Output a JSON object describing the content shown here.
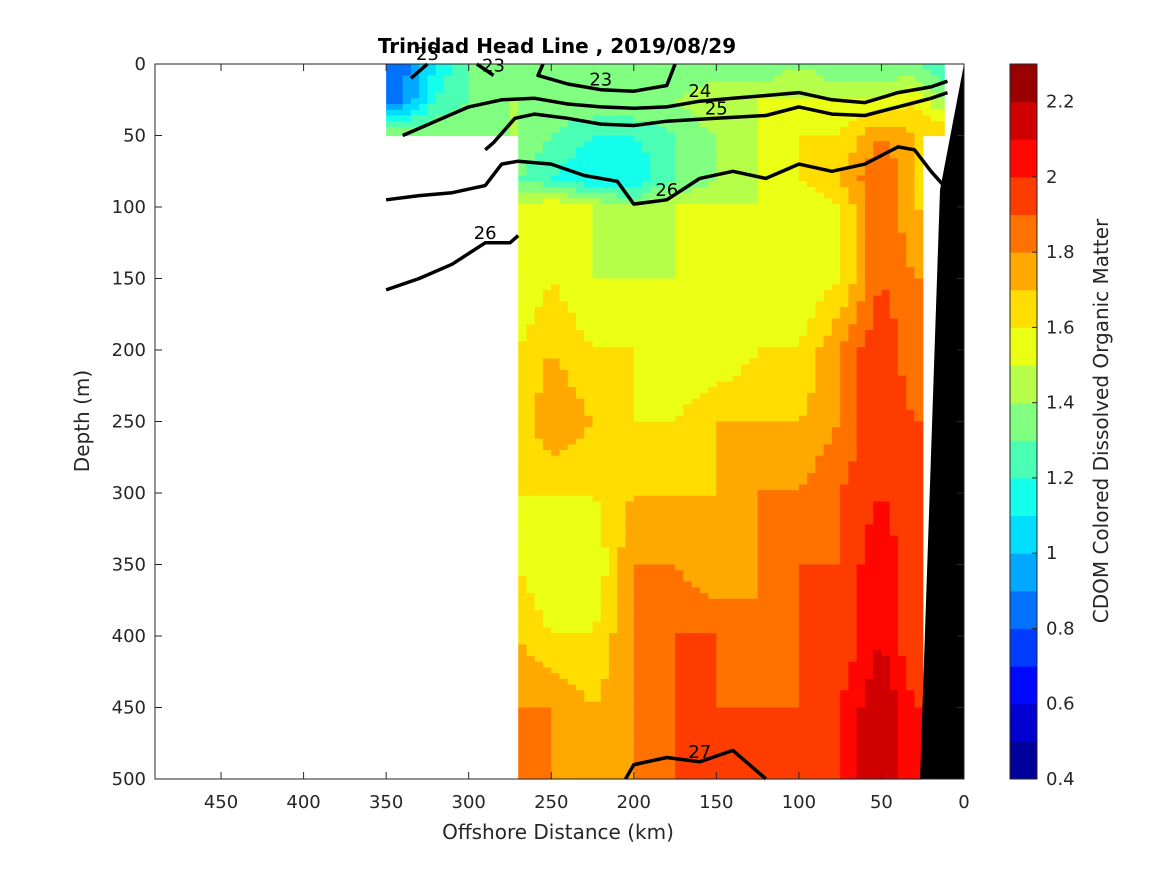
{
  "chart_data": {
    "type": "heatmap",
    "title": "Trinidad Head Line , 2019/08/29",
    "xlabel": "Offshore Distance (km)",
    "ylabel": "Depth (m)",
    "colorbar_label": "CDOM Colored Dissolved Organic Matter",
    "xlim": [
      490,
      0
    ],
    "ylim": [
      0,
      500
    ],
    "x_reversed": true,
    "y_reversed": true,
    "xticks": [
      450,
      400,
      350,
      300,
      250,
      200,
      150,
      100,
      50,
      0
    ],
    "yticks": [
      0,
      50,
      100,
      150,
      200,
      250,
      300,
      350,
      400,
      450,
      500
    ],
    "colorbar_range": [
      0.4,
      2.3
    ],
    "colorbar_ticks": [
      "0.4",
      "0.6",
      "0.8",
      "1",
      "1.2",
      "1.4",
      "1.6",
      "1.8",
      "2",
      "2.2"
    ],
    "colorbar_steps": 19,
    "field_regions": [
      {
        "x": [
          350,
          12
        ],
        "depth": [
          0,
          50
        ]
      },
      {
        "x": [
          270,
          25
        ],
        "depth": [
          50,
          500
        ]
      }
    ],
    "field_samples": [
      {
        "depth": 0,
        "values": [
          {
            "x": 345,
            "v": 0.8
          },
          {
            "x": 320,
            "v": 1.1
          },
          {
            "x": 300,
            "v": 1.3
          },
          {
            "x": 275,
            "v": 1.3
          },
          {
            "x": 250,
            "v": 1.3
          },
          {
            "x": 225,
            "v": 1.3
          },
          {
            "x": 200,
            "v": 1.4
          },
          {
            "x": 175,
            "v": 1.3
          },
          {
            "x": 150,
            "v": 1.3
          },
          {
            "x": 125,
            "v": 1.3
          },
          {
            "x": 100,
            "v": 1.4
          },
          {
            "x": 75,
            "v": 1.3
          },
          {
            "x": 50,
            "v": 1.3
          },
          {
            "x": 30,
            "v": 1.3
          },
          {
            "x": 15,
            "v": 1.2
          }
        ]
      },
      {
        "depth": 25,
        "values": [
          {
            "x": 345,
            "v": 0.8
          },
          {
            "x": 320,
            "v": 1.2
          },
          {
            "x": 300,
            "v": 1.3
          },
          {
            "x": 275,
            "v": 1.4
          },
          {
            "x": 250,
            "v": 1.4
          },
          {
            "x": 225,
            "v": 1.4
          },
          {
            "x": 200,
            "v": 1.4
          },
          {
            "x": 175,
            "v": 1.4
          },
          {
            "x": 150,
            "v": 1.5
          },
          {
            "x": 125,
            "v": 1.5
          },
          {
            "x": 100,
            "v": 1.5
          },
          {
            "x": 75,
            "v": 1.5
          },
          {
            "x": 50,
            "v": 1.5
          },
          {
            "x": 30,
            "v": 1.6
          },
          {
            "x": 15,
            "v": 1.4
          }
        ]
      },
      {
        "depth": 50,
        "values": [
          {
            "x": 270,
            "v": 1.4
          },
          {
            "x": 250,
            "v": 1.3
          },
          {
            "x": 225,
            "v": 1.2
          },
          {
            "x": 200,
            "v": 1.2
          },
          {
            "x": 175,
            "v": 1.3
          },
          {
            "x": 150,
            "v": 1.4
          },
          {
            "x": 125,
            "v": 1.5
          },
          {
            "x": 100,
            "v": 1.6
          },
          {
            "x": 75,
            "v": 1.6
          },
          {
            "x": 50,
            "v": 1.8
          },
          {
            "x": 30,
            "v": 1.7
          }
        ]
      },
      {
        "depth": 80,
        "values": [
          {
            "x": 270,
            "v": 1.3
          },
          {
            "x": 250,
            "v": 1.2
          },
          {
            "x": 225,
            "v": 1.1
          },
          {
            "x": 200,
            "v": 1.1
          },
          {
            "x": 175,
            "v": 1.3
          },
          {
            "x": 150,
            "v": 1.4
          },
          {
            "x": 125,
            "v": 1.5
          },
          {
            "x": 100,
            "v": 1.6
          },
          {
            "x": 75,
            "v": 1.7
          },
          {
            "x": 50,
            "v": 1.9
          },
          {
            "x": 30,
            "v": 1.7
          }
        ]
      },
      {
        "depth": 100,
        "values": [
          {
            "x": 270,
            "v": 1.5
          },
          {
            "x": 250,
            "v": 1.6
          },
          {
            "x": 225,
            "v": 1.5
          },
          {
            "x": 200,
            "v": 1.4
          },
          {
            "x": 175,
            "v": 1.5
          },
          {
            "x": 150,
            "v": 1.5
          },
          {
            "x": 125,
            "v": 1.5
          },
          {
            "x": 100,
            "v": 1.5
          },
          {
            "x": 75,
            "v": 1.6
          },
          {
            "x": 50,
            "v": 1.9
          },
          {
            "x": 30,
            "v": 1.7
          }
        ]
      },
      {
        "depth": 150,
        "values": [
          {
            "x": 270,
            "v": 1.5
          },
          {
            "x": 250,
            "v": 1.6
          },
          {
            "x": 225,
            "v": 1.5
          },
          {
            "x": 200,
            "v": 1.5
          },
          {
            "x": 175,
            "v": 1.5
          },
          {
            "x": 150,
            "v": 1.5
          },
          {
            "x": 125,
            "v": 1.5
          },
          {
            "x": 100,
            "v": 1.5
          },
          {
            "x": 75,
            "v": 1.6
          },
          {
            "x": 50,
            "v": 1.9
          },
          {
            "x": 30,
            "v": 1.8
          }
        ]
      },
      {
        "depth": 200,
        "values": [
          {
            "x": 270,
            "v": 1.6
          },
          {
            "x": 250,
            "v": 1.7
          },
          {
            "x": 225,
            "v": 1.6
          },
          {
            "x": 200,
            "v": 1.6
          },
          {
            "x": 175,
            "v": 1.5
          },
          {
            "x": 150,
            "v": 1.5
          },
          {
            "x": 125,
            "v": 1.6
          },
          {
            "x": 100,
            "v": 1.6
          },
          {
            "x": 75,
            "v": 1.8
          },
          {
            "x": 50,
            "v": 2.0
          },
          {
            "x": 30,
            "v": 1.8
          }
        ]
      },
      {
        "depth": 250,
        "values": [
          {
            "x": 270,
            "v": 1.6
          },
          {
            "x": 250,
            "v": 1.8
          },
          {
            "x": 225,
            "v": 1.7
          },
          {
            "x": 200,
            "v": 1.6
          },
          {
            "x": 175,
            "v": 1.6
          },
          {
            "x": 150,
            "v": 1.7
          },
          {
            "x": 125,
            "v": 1.7
          },
          {
            "x": 100,
            "v": 1.7
          },
          {
            "x": 75,
            "v": 1.8
          },
          {
            "x": 50,
            "v": 2.0
          },
          {
            "x": 30,
            "v": 1.9
          }
        ]
      },
      {
        "depth": 300,
        "values": [
          {
            "x": 270,
            "v": 1.6
          },
          {
            "x": 250,
            "v": 1.6
          },
          {
            "x": 225,
            "v": 1.6
          },
          {
            "x": 200,
            "v": 1.7
          },
          {
            "x": 175,
            "v": 1.7
          },
          {
            "x": 150,
            "v": 1.7
          },
          {
            "x": 125,
            "v": 1.8
          },
          {
            "x": 100,
            "v": 1.8
          },
          {
            "x": 75,
            "v": 1.9
          },
          {
            "x": 50,
            "v": 2.0
          },
          {
            "x": 30,
            "v": 1.9
          }
        ]
      },
      {
        "depth": 350,
        "values": [
          {
            "x": 270,
            "v": 1.6
          },
          {
            "x": 250,
            "v": 1.5
          },
          {
            "x": 225,
            "v": 1.5
          },
          {
            "x": 200,
            "v": 1.8
          },
          {
            "x": 175,
            "v": 1.8
          },
          {
            "x": 150,
            "v": 1.7
          },
          {
            "x": 125,
            "v": 1.8
          },
          {
            "x": 100,
            "v": 1.9
          },
          {
            "x": 75,
            "v": 1.9
          },
          {
            "x": 50,
            "v": 2.1
          },
          {
            "x": 30,
            "v": 1.9
          }
        ]
      },
      {
        "depth": 400,
        "values": [
          {
            "x": 270,
            "v": 1.7
          },
          {
            "x": 250,
            "v": 1.6
          },
          {
            "x": 225,
            "v": 1.6
          },
          {
            "x": 200,
            "v": 1.8
          },
          {
            "x": 175,
            "v": 1.9
          },
          {
            "x": 150,
            "v": 1.9
          },
          {
            "x": 125,
            "v": 1.8
          },
          {
            "x": 100,
            "v": 1.9
          },
          {
            "x": 75,
            "v": 1.9
          },
          {
            "x": 50,
            "v": 2.1
          },
          {
            "x": 30,
            "v": 1.9
          }
        ]
      },
      {
        "depth": 450,
        "values": [
          {
            "x": 270,
            "v": 1.8
          },
          {
            "x": 250,
            "v": 1.8
          },
          {
            "x": 225,
            "v": 1.7
          },
          {
            "x": 200,
            "v": 1.8
          },
          {
            "x": 175,
            "v": 1.9
          },
          {
            "x": 150,
            "v": 1.9
          },
          {
            "x": 125,
            "v": 1.9
          },
          {
            "x": 100,
            "v": 1.9
          },
          {
            "x": 75,
            "v": 2.0
          },
          {
            "x": 50,
            "v": 2.2
          },
          {
            "x": 30,
            "v": 2.0
          }
        ]
      },
      {
        "depth": 500,
        "values": [
          {
            "x": 270,
            "v": 1.8
          },
          {
            "x": 250,
            "v": 1.8
          },
          {
            "x": 225,
            "v": 1.8
          },
          {
            "x": 200,
            "v": 1.8
          },
          {
            "x": 175,
            "v": 1.9
          },
          {
            "x": 150,
            "v": 1.9
          },
          {
            "x": 125,
            "v": 1.9
          },
          {
            "x": 100,
            "v": 1.9
          },
          {
            "x": 75,
            "v": 2.0
          },
          {
            "x": 50,
            "v": 2.2
          },
          {
            "x": 30,
            "v": 2.0
          }
        ]
      }
    ],
    "isopycnals": [
      {
        "label": "23",
        "bold": true,
        "points": [
          [
            335,
            10
          ],
          [
            325,
            0
          ]
        ]
      },
      {
        "label": "23",
        "bold": true,
        "points": [
          [
            295,
            0
          ],
          [
            285,
            8
          ]
        ]
      },
      {
        "label": "23",
        "bold": true,
        "points": [
          [
            255,
            0
          ],
          [
            258,
            8
          ],
          [
            240,
            14
          ],
          [
            220,
            18
          ],
          [
            200,
            19
          ],
          [
            180,
            15
          ],
          [
            175,
            0
          ]
        ]
      },
      {
        "label": "24",
        "bold": true,
        "points": [
          [
            340,
            50
          ],
          [
            320,
            40
          ],
          [
            300,
            30
          ],
          [
            280,
            25
          ],
          [
            260,
            24
          ],
          [
            240,
            28
          ],
          [
            220,
            30
          ],
          [
            200,
            31
          ],
          [
            180,
            30
          ],
          [
            160,
            26
          ],
          [
            140,
            24
          ],
          [
            120,
            22
          ],
          [
            100,
            20
          ],
          [
            80,
            25
          ],
          [
            60,
            27
          ],
          [
            40,
            20
          ],
          [
            20,
            16
          ],
          [
            10,
            12
          ]
        ]
      },
      {
        "label": "25",
        "bold": true,
        "points": [
          [
            290,
            60
          ],
          [
            285,
            55
          ],
          [
            272,
            38
          ],
          [
            260,
            35
          ],
          [
            240,
            38
          ],
          [
            220,
            42
          ],
          [
            200,
            43
          ],
          [
            180,
            40
          ],
          [
            150,
            38
          ],
          [
            120,
            36
          ],
          [
            100,
            30
          ],
          [
            80,
            35
          ],
          [
            60,
            36
          ],
          [
            40,
            30
          ],
          [
            20,
            24
          ],
          [
            10,
            20
          ]
        ]
      },
      {
        "label": "26",
        "bold": true,
        "points": [
          [
            350,
            95
          ],
          [
            330,
            92
          ],
          [
            310,
            90
          ],
          [
            290,
            85
          ],
          [
            280,
            70
          ],
          [
            270,
            68
          ],
          [
            250,
            70
          ],
          [
            230,
            78
          ],
          [
            210,
            82
          ],
          [
            200,
            98
          ],
          [
            180,
            95
          ],
          [
            160,
            80
          ],
          [
            140,
            75
          ],
          [
            120,
            80
          ],
          [
            100,
            70
          ],
          [
            80,
            75
          ],
          [
            60,
            70
          ],
          [
            40,
            58
          ],
          [
            30,
            60
          ],
          [
            20,
            75
          ],
          [
            10,
            88
          ]
        ]
      },
      {
        "label": "26",
        "bold": true,
        "points": [
          [
            350,
            158
          ],
          [
            330,
            150
          ],
          [
            310,
            140
          ],
          [
            290,
            125
          ],
          [
            275,
            125
          ],
          [
            270,
            120
          ]
        ]
      },
      {
        "label": "27",
        "bold": true,
        "points": [
          [
            205,
            500
          ],
          [
            200,
            490
          ],
          [
            180,
            485
          ],
          [
            160,
            488
          ],
          [
            140,
            480
          ],
          [
            120,
            500
          ]
        ]
      }
    ]
  }
}
